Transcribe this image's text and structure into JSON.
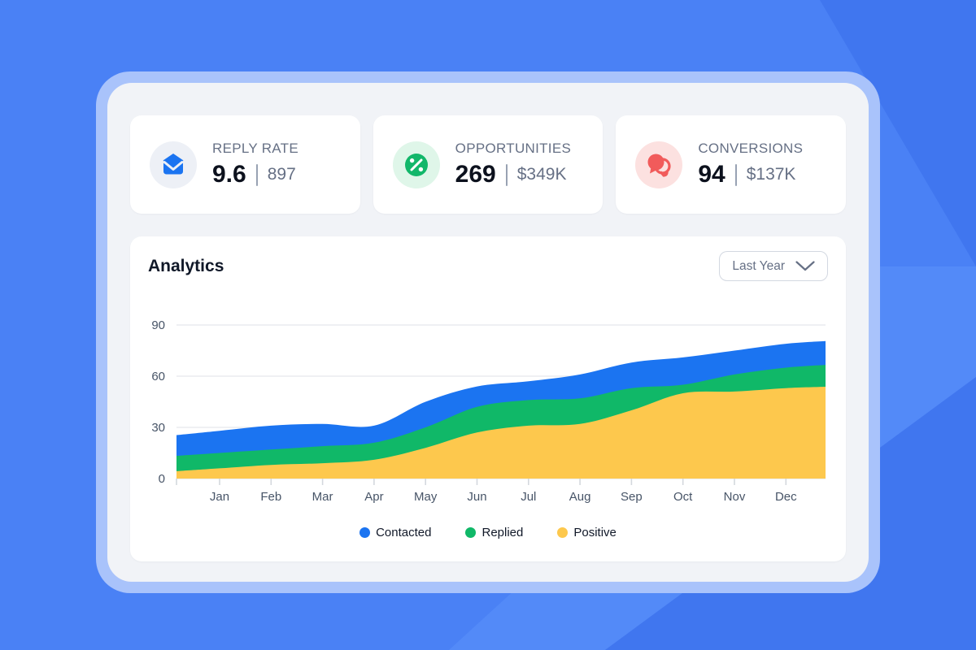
{
  "background": {
    "base_color": "#4A81F5",
    "shade_dark": "#4076EF",
    "shade_light": "#538AF8",
    "frame_color": "#A9C3FB",
    "panel_color": "#F1F3F7"
  },
  "stats": {
    "cards": [
      {
        "id": "reply-rate",
        "label": "REPLY RATE",
        "value": "9.6",
        "secondary": "897",
        "icon": "mail-icon",
        "icon_color": "#1B74F1",
        "icon_bg": "#EDF0F6"
      },
      {
        "id": "opportunities",
        "label": "OPPORTUNITIES",
        "value": "269",
        "secondary": "$349K",
        "icon": "percent-icon",
        "icon_color": "#12B76A",
        "icon_bg": "#DFF6E9"
      },
      {
        "id": "conversions",
        "label": "CONVERSIONS",
        "value": "94",
        "secondary": "$137K",
        "icon": "chat-icon",
        "icon_color": "#F15B5B",
        "icon_bg": "#FCE1E0"
      }
    ]
  },
  "analytics": {
    "title": "Analytics",
    "range_selector": {
      "value": "Last Year"
    }
  },
  "chart_data": {
    "type": "area",
    "stacking": "overlay",
    "title": "Analytics",
    "xlabel": "",
    "ylabel": "",
    "categories": [
      "Jan",
      "Feb",
      "Mar",
      "Apr",
      "May",
      "Jun",
      "Jul",
      "Aug",
      "Sep",
      "Oct",
      "Nov",
      "Dec"
    ],
    "series": [
      {
        "name": "Contacted",
        "color": "#1B74F1",
        "values": [
          28,
          31,
          32,
          31,
          45,
          54,
          57,
          61,
          68,
          71,
          75,
          79
        ]
      },
      {
        "name": "Replied",
        "color": "#10B868",
        "values": [
          15,
          17,
          19,
          21,
          30,
          42,
          46,
          47,
          53,
          55,
          61,
          65
        ]
      },
      {
        "name": "Positive",
        "color": "#FDC84D",
        "values": [
          6,
          8,
          9,
          11,
          18,
          27,
          31,
          32,
          40,
          50,
          51,
          53
        ]
      }
    ],
    "ylim": [
      0,
      90
    ],
    "yticks": [
      0,
      30,
      60,
      90
    ],
    "grid": true,
    "legend_position": "bottom",
    "axis_text_color": "#475467",
    "grid_color": "#E5E8EC",
    "tick_color": "#D4D8DE"
  }
}
